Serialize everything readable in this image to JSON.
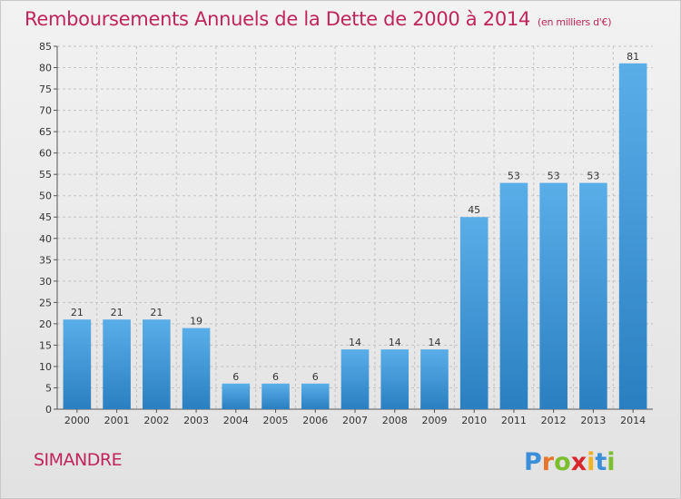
{
  "chart_data": {
    "type": "bar",
    "title": "Remboursements Annuels de la Dette de 2000 à 2014",
    "subtitle": "(en milliers d'€)",
    "categories": [
      "2000",
      "2001",
      "2002",
      "2003",
      "2004",
      "2005",
      "2006",
      "2007",
      "2008",
      "2009",
      "2010",
      "2011",
      "2012",
      "2013",
      "2014"
    ],
    "values": [
      21,
      21,
      21,
      19,
      6,
      6,
      6,
      14,
      14,
      14,
      45,
      53,
      53,
      53,
      81
    ],
    "ylim": [
      0,
      85
    ],
    "yticks": [
      0,
      5,
      10,
      15,
      20,
      25,
      30,
      35,
      40,
      45,
      50,
      55,
      60,
      65,
      70,
      75,
      80,
      85
    ],
    "grid": true,
    "legend": "none",
    "colors": {
      "bar_top": "#5aaee8",
      "bar_bottom": "#2a7fc1",
      "title": "#c0245c"
    }
  },
  "footer": {
    "commune": "SIMANDRE",
    "logo": "Proxiti"
  }
}
